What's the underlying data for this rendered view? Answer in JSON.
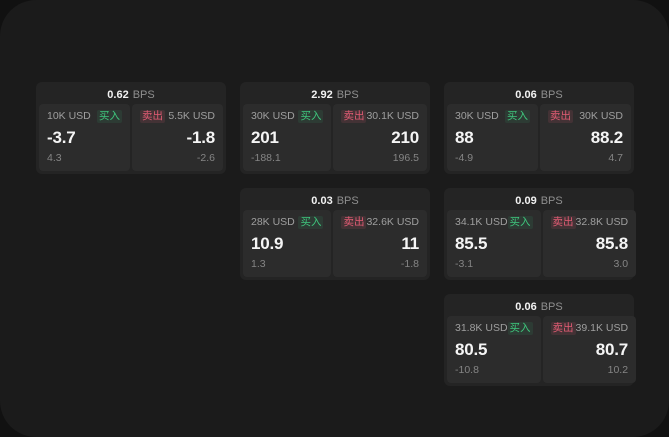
{
  "labels": {
    "bps_unit": "BPS",
    "buy": "买入",
    "sell": "卖出"
  },
  "colors": {
    "page_background": "#1b1b1b",
    "card_background": "#242424",
    "panel_background": "#2c2c2c",
    "buy_accent": "#3fc77d",
    "sell_accent": "#e25c74"
  },
  "cards": [
    {
      "bps": "0.62",
      "buy": {
        "amount": "10K USD",
        "price": "-3.7",
        "delta": "4.3"
      },
      "sell": {
        "amount": "5.5K USD",
        "price": "-1.8",
        "delta": "-2.6"
      }
    },
    {
      "bps": "2.92",
      "buy": {
        "amount": "30K USD",
        "price": "201",
        "delta": "-188.1"
      },
      "sell": {
        "amount": "30.1K USD",
        "price": "210",
        "delta": "196.5"
      }
    },
    {
      "bps": "0.06",
      "buy": {
        "amount": "30K USD",
        "price": "88",
        "delta": "-4.9"
      },
      "sell": {
        "amount": "30K USD",
        "price": "88.2",
        "delta": "4.7"
      }
    },
    {
      "bps": "0.03",
      "buy": {
        "amount": "28K USD",
        "price": "10.9",
        "delta": "1.3"
      },
      "sell": {
        "amount": "32.6K USD",
        "price": "11",
        "delta": "-1.8"
      }
    },
    {
      "bps": "0.09",
      "buy": {
        "amount": "34.1K USD",
        "price": "85.5",
        "delta": "-3.1"
      },
      "sell": {
        "amount": "32.8K USD",
        "price": "85.8",
        "delta": "3.0"
      }
    },
    {
      "bps": "0.06",
      "buy": {
        "amount": "31.8K USD",
        "price": "80.5",
        "delta": "-10.8"
      },
      "sell": {
        "amount": "39.1K USD",
        "price": "80.7",
        "delta": "10.2"
      }
    }
  ]
}
